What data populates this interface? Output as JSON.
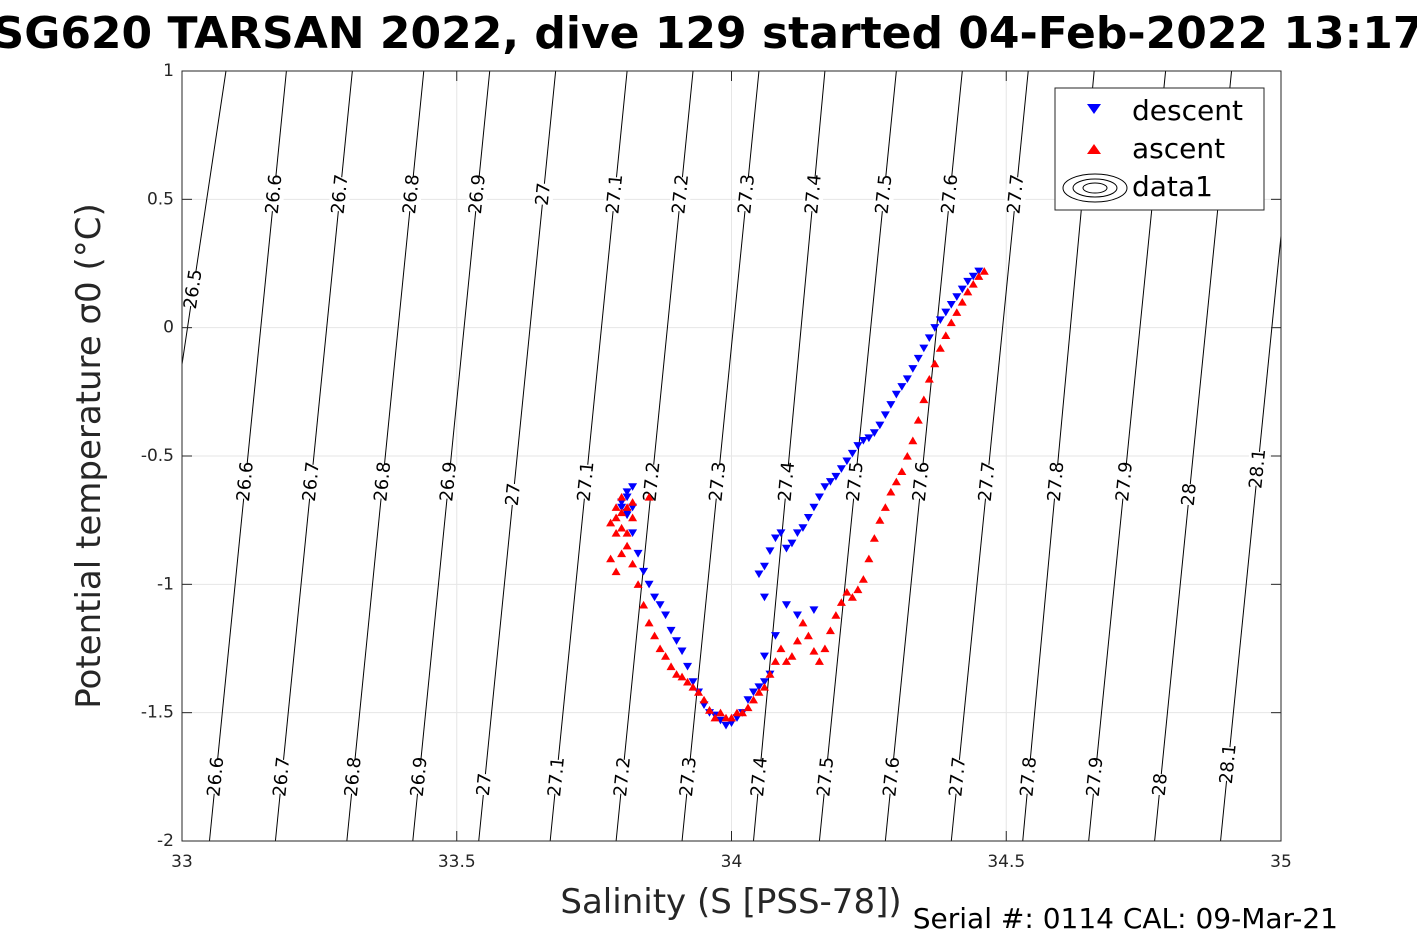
{
  "chart_data": {
    "type": "scatter",
    "title": "SG620 TARSAN 2022, dive 129 started 04-Feb-2022 13:17",
    "xlabel": "Salinity (S [PSS-78])",
    "ylabel": "Potential temperature σ0 (°C)",
    "xlim": [
      33,
      35
    ],
    "ylim": [
      -2,
      1
    ],
    "xticks": [
      33,
      33.5,
      34,
      34.5,
      35
    ],
    "xtick_labels": [
      "33",
      "33.5",
      "34",
      "34.5",
      "35"
    ],
    "yticks": [
      -2,
      -1.5,
      -1,
      -0.5,
      0,
      0.5,
      1
    ],
    "ytick_labels": [
      "-2",
      "-1.5",
      "-1",
      "-0.5",
      "0",
      "0.5",
      "1"
    ],
    "grid": true,
    "legend_position": "top-right",
    "footer": "Serial #: 0114  CAL: 09-Mar-21",
    "legend": [
      {
        "name": "descent",
        "marker": "down-triangle",
        "color": "#0000ff"
      },
      {
        "name": "ascent",
        "marker": "up-triangle",
        "color": "#ff0000"
      },
      {
        "name": "data1",
        "marker": "contour-ellipses",
        "color": "#000000"
      }
    ],
    "contours": [
      {
        "sigma": 26.5,
        "s_at_top": 33.08,
        "s_at_bottom": 32.87,
        "labels": [
          {
            "text": "26.5",
            "t": 0.15
          }
        ]
      },
      {
        "sigma": 26.6,
        "s_at_top": 33.19,
        "s_at_bottom": 33.05,
        "labels": [
          {
            "text": "26.6",
            "t": 0.52
          },
          {
            "text": "26.6",
            "t": -0.6
          },
          {
            "text": "26.6",
            "t": -1.75
          }
        ]
      },
      {
        "sigma": 26.7,
        "s_at_top": 33.31,
        "s_at_bottom": 33.17,
        "labels": [
          {
            "text": "26.7",
            "t": 0.52
          },
          {
            "text": "26.7",
            "t": -0.6
          },
          {
            "text": "26.7",
            "t": -1.75
          }
        ]
      },
      {
        "sigma": 26.8,
        "s_at_top": 33.44,
        "s_at_bottom": 33.3,
        "labels": [
          {
            "text": "26.8",
            "t": 0.52
          },
          {
            "text": "26.8",
            "t": -0.6
          },
          {
            "text": "26.8",
            "t": -1.75
          }
        ]
      },
      {
        "sigma": 26.9,
        "s_at_top": 33.56,
        "s_at_bottom": 33.42,
        "labels": [
          {
            "text": "26.9",
            "t": 0.52
          },
          {
            "text": "26.9",
            "t": -0.6
          },
          {
            "text": "26.9",
            "t": -1.75
          }
        ]
      },
      {
        "sigma": 27.0,
        "s_at_top": 33.68,
        "s_at_bottom": 33.54,
        "labels": [
          {
            "text": "27",
            "t": 0.52
          },
          {
            "text": "27",
            "t": -0.65
          },
          {
            "text": "27",
            "t": -1.78
          }
        ]
      },
      {
        "sigma": 27.1,
        "s_at_top": 33.81,
        "s_at_bottom": 33.67,
        "labels": [
          {
            "text": "27.1",
            "t": 0.52
          },
          {
            "text": "27.1",
            "t": -0.6
          },
          {
            "text": "27.1",
            "t": -1.75
          }
        ]
      },
      {
        "sigma": 27.2,
        "s_at_top": 33.93,
        "s_at_bottom": 33.79,
        "labels": [
          {
            "text": "27.2",
            "t": 0.52
          },
          {
            "text": "27.2",
            "t": -0.6
          },
          {
            "text": "27.2",
            "t": -1.75
          }
        ]
      },
      {
        "sigma": 27.3,
        "s_at_top": 34.05,
        "s_at_bottom": 33.91,
        "labels": [
          {
            "text": "27.3",
            "t": 0.52
          },
          {
            "text": "27.3",
            "t": -0.6
          },
          {
            "text": "27.3",
            "t": -1.75
          }
        ]
      },
      {
        "sigma": 27.4,
        "s_at_top": 34.17,
        "s_at_bottom": 34.04,
        "labels": [
          {
            "text": "27.4",
            "t": 0.52
          },
          {
            "text": "27.4",
            "t": -0.6
          },
          {
            "text": "27.4",
            "t": -1.75
          }
        ]
      },
      {
        "sigma": 27.5,
        "s_at_top": 34.3,
        "s_at_bottom": 34.16,
        "labels": [
          {
            "text": "27.5",
            "t": 0.52
          },
          {
            "text": "27.5",
            "t": -0.6
          },
          {
            "text": "27.5",
            "t": -1.75
          }
        ]
      },
      {
        "sigma": 27.6,
        "s_at_top": 34.42,
        "s_at_bottom": 34.28,
        "labels": [
          {
            "text": "27.6",
            "t": 0.52
          },
          {
            "text": "27.6",
            "t": -0.6
          },
          {
            "text": "27.6",
            "t": -1.75
          }
        ]
      },
      {
        "sigma": 27.7,
        "s_at_top": 34.54,
        "s_at_bottom": 34.4,
        "labels": [
          {
            "text": "27.7",
            "t": 0.52
          },
          {
            "text": "27.7",
            "t": -0.6
          },
          {
            "text": "27.7",
            "t": -1.75
          }
        ]
      },
      {
        "sigma": 27.8,
        "s_at_top": 34.66,
        "s_at_bottom": 34.53,
        "labels": [
          {
            "text": "27.8",
            "t": -0.6
          },
          {
            "text": "27.8",
            "t": -1.75
          }
        ]
      },
      {
        "sigma": 27.9,
        "s_at_top": 34.79,
        "s_at_bottom": 34.65,
        "labels": [
          {
            "text": "27.9",
            "t": -0.6
          },
          {
            "text": "27.9",
            "t": -1.75
          }
        ]
      },
      {
        "sigma": 28.0,
        "s_at_top": 34.91,
        "s_at_bottom": 34.77,
        "labels": [
          {
            "text": "28",
            "t": -0.65
          },
          {
            "text": "28",
            "t": -1.78
          }
        ]
      },
      {
        "sigma": 28.1,
        "s_at_top": 35.03,
        "s_at_bottom": 34.89,
        "labels": [
          {
            "text": "28.1",
            "t": -0.55
          },
          {
            "text": "28.1",
            "t": -1.7
          }
        ]
      }
    ],
    "series": [
      {
        "name": "descent",
        "color": "#0000ff",
        "marker": "down-triangle",
        "x": [
          34.45,
          34.44,
          34.43,
          34.42,
          34.41,
          34.4,
          34.39,
          34.38,
          34.37,
          34.36,
          34.35,
          34.34,
          34.33,
          34.32,
          34.31,
          34.3,
          34.29,
          34.28,
          34.27,
          34.26,
          34.25,
          34.24,
          34.23,
          34.22,
          34.21,
          34.2,
          34.19,
          34.18,
          34.17,
          34.16,
          34.15,
          34.14,
          34.13,
          34.12,
          34.11,
          34.1,
          34.09,
          34.08,
          34.07,
          34.06,
          34.05,
          34.06,
          34.1,
          34.15,
          34.12,
          34.08,
          34.06,
          34.07,
          34.06,
          34.05,
          34.04,
          34.03,
          34.02,
          34.01,
          34.0,
          33.99,
          33.98,
          33.97,
          33.96,
          33.95,
          33.94,
          33.93,
          33.92,
          33.91,
          33.9,
          33.89,
          33.88,
          33.87,
          33.86,
          33.85,
          33.84,
          33.83,
          33.82,
          33.81,
          33.8,
          33.81,
          33.82,
          33.81,
          33.8,
          33.81,
          33.82
        ],
        "y": [
          0.22,
          0.2,
          0.18,
          0.15,
          0.12,
          0.09,
          0.06,
          0.03,
          0.0,
          -0.04,
          -0.08,
          -0.12,
          -0.16,
          -0.2,
          -0.23,
          -0.26,
          -0.3,
          -0.34,
          -0.38,
          -0.41,
          -0.43,
          -0.44,
          -0.46,
          -0.49,
          -0.52,
          -0.55,
          -0.58,
          -0.6,
          -0.62,
          -0.66,
          -0.7,
          -0.74,
          -0.78,
          -0.8,
          -0.84,
          -0.86,
          -0.8,
          -0.82,
          -0.87,
          -0.93,
          -0.96,
          -1.05,
          -1.08,
          -1.1,
          -1.12,
          -1.2,
          -1.28,
          -1.35,
          -1.38,
          -1.4,
          -1.42,
          -1.45,
          -1.5,
          -1.52,
          -1.54,
          -1.55,
          -1.53,
          -1.51,
          -1.5,
          -1.47,
          -1.42,
          -1.38,
          -1.32,
          -1.26,
          -1.22,
          -1.18,
          -1.12,
          -1.08,
          -1.05,
          -1.0,
          -0.95,
          -0.88,
          -0.8,
          -0.73,
          -0.68,
          -0.64,
          -0.62,
          -0.66,
          -0.7,
          -0.72,
          -0.7
        ]
      },
      {
        "name": "ascent",
        "color": "#ff0000",
        "marker": "up-triangle",
        "x": [
          34.46,
          34.45,
          34.44,
          34.43,
          34.42,
          34.41,
          34.4,
          34.39,
          34.38,
          34.37,
          34.36,
          34.35,
          34.34,
          34.33,
          34.32,
          34.31,
          34.3,
          34.29,
          34.28,
          34.27,
          34.26,
          34.25,
          34.24,
          34.23,
          34.22,
          34.21,
          34.2,
          34.19,
          34.18,
          34.17,
          34.16,
          34.15,
          34.14,
          34.13,
          34.12,
          34.11,
          34.1,
          34.09,
          34.08,
          34.07,
          34.06,
          34.05,
          34.04,
          34.03,
          34.02,
          34.01,
          34.0,
          33.99,
          33.98,
          33.97,
          33.96,
          33.95,
          33.94,
          33.93,
          33.92,
          33.91,
          33.9,
          33.89,
          33.88,
          33.87,
          33.86,
          33.85,
          33.84,
          33.83,
          33.82,
          33.81,
          33.8,
          33.79,
          33.78,
          33.79,
          33.8,
          33.81,
          33.82,
          33.81,
          33.8,
          33.79,
          33.78,
          33.79,
          33.8,
          33.82,
          33.85
        ],
        "y": [
          0.22,
          0.2,
          0.17,
          0.14,
          0.1,
          0.06,
          0.02,
          -0.03,
          -0.08,
          -0.14,
          -0.2,
          -0.28,
          -0.36,
          -0.44,
          -0.5,
          -0.56,
          -0.6,
          -0.64,
          -0.7,
          -0.75,
          -0.82,
          -0.9,
          -0.98,
          -1.02,
          -1.05,
          -1.03,
          -1.07,
          -1.12,
          -1.18,
          -1.25,
          -1.3,
          -1.26,
          -1.2,
          -1.15,
          -1.22,
          -1.28,
          -1.3,
          -1.25,
          -1.3,
          -1.35,
          -1.4,
          -1.42,
          -1.45,
          -1.48,
          -1.5,
          -1.5,
          -1.52,
          -1.52,
          -1.5,
          -1.52,
          -1.49,
          -1.45,
          -1.42,
          -1.4,
          -1.38,
          -1.36,
          -1.35,
          -1.32,
          -1.28,
          -1.25,
          -1.2,
          -1.15,
          -1.08,
          -1.0,
          -0.92,
          -0.85,
          -0.78,
          -0.74,
          -0.76,
          -0.7,
          -0.66,
          -0.7,
          -0.74,
          -0.8,
          -0.88,
          -0.95,
          -0.9,
          -0.8,
          -0.72,
          -0.68,
          -0.66
        ]
      }
    ]
  }
}
